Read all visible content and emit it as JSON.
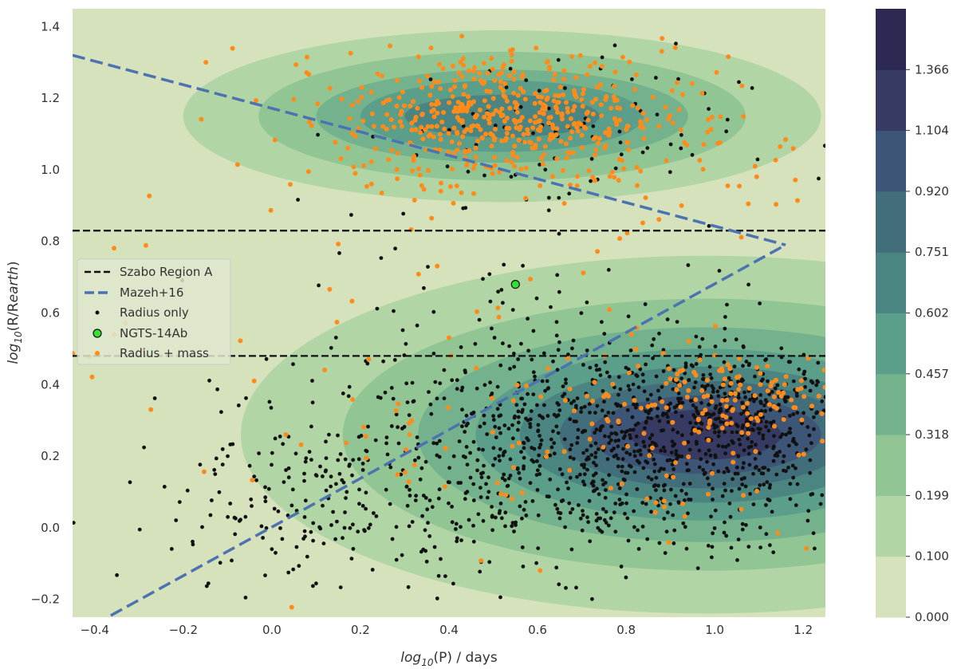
{
  "chart_data": {
    "type": "scatter",
    "title": "",
    "xlabel": {
      "pre": "log",
      "sub": "10",
      "post": "(P) / days"
    },
    "ylabel": {
      "pre": "log",
      "sub": "10",
      "mid": "(R/R",
      "sub2": "earth",
      "post": ")"
    },
    "xlim": [
      -0.45,
      1.25
    ],
    "ylim": [
      -0.25,
      1.45
    ],
    "xticks": [
      -0.4,
      -0.2,
      0.0,
      0.2,
      0.4,
      0.6,
      0.8,
      1.0,
      1.2
    ],
    "yticks": [
      -0.2,
      0.0,
      0.2,
      0.4,
      0.6,
      0.8,
      1.0,
      1.2,
      1.4
    ],
    "xtick_labels": [
      "−0.4",
      "−0.2",
      "0.0",
      "0.2",
      "0.4",
      "0.6",
      "0.8",
      "1.0",
      "1.2"
    ],
    "ytick_labels": [
      "−0.2",
      "0.0",
      "0.2",
      "0.4",
      "0.6",
      "0.8",
      "1.0",
      "1.2",
      "1.4"
    ],
    "grid": false,
    "background_color": "#d5e2bc",
    "colorbar": {
      "levels": [
        0.0,
        0.1,
        0.199,
        0.318,
        0.457,
        0.602,
        0.751,
        0.92,
        1.104,
        1.366
      ],
      "labels": [
        "0.000",
        "0.100",
        "0.199",
        "0.318",
        "0.457",
        "0.602",
        "0.751",
        "0.920",
        "1.104",
        "1.366"
      ],
      "colors": [
        "#d5e2bc",
        "#b2d5a5",
        "#91c594",
        "#73b28d",
        "#5b9e89",
        "#4b8582",
        "#426e7c",
        "#3d5576",
        "#373b63",
        "#2c2a52"
      ]
    },
    "density_blobs": [
      {
        "name": "giant-planet-cluster",
        "cx": 0.52,
        "cy": 1.15,
        "rx": [
          0.72,
          0.55,
          0.42,
          0.32,
          0.22
        ],
        "ry": [
          0.24,
          0.18,
          0.13,
          0.1,
          0.06
        ],
        "levels": [
          1,
          2,
          3,
          4,
          5
        ]
      },
      {
        "name": "small-planet-cluster",
        "cx": 0.98,
        "cy": 0.26,
        "rx": [
          1.05,
          0.82,
          0.65,
          0.52,
          0.42,
          0.33,
          0.26,
          0.17
        ],
        "ry": [
          0.5,
          0.38,
          0.3,
          0.24,
          0.19,
          0.15,
          0.11,
          0.07
        ],
        "levels": [
          1,
          2,
          3,
          4,
          5,
          6,
          7,
          8
        ]
      }
    ],
    "hlines": [
      {
        "name": "szabo-region-a-upper",
        "y": 0.83,
        "color": "#111111",
        "dash": "dashed"
      },
      {
        "name": "szabo-region-a-lower",
        "y": 0.48,
        "color": "#111111",
        "dash": "dashed"
      }
    ],
    "mazeh_lines": [
      {
        "name": "mazeh-upper-boundary",
        "x": [
          -0.45,
          1.16
        ],
        "y": [
          1.32,
          0.79
        ]
      },
      {
        "name": "mazeh-lower-boundary",
        "x": [
          -0.4,
          1.16
        ],
        "y": [
          -0.27,
          0.79
        ]
      }
    ],
    "series": [
      {
        "name": "Radius only",
        "color": "#111111",
        "kind": "dots",
        "clusters": [
          {
            "cx": 0.78,
            "cy": 0.2,
            "sx": 0.3,
            "sy": 0.14,
            "n": 850
          },
          {
            "cx": 1.05,
            "cy": 0.33,
            "sx": 0.12,
            "sy": 0.08,
            "n": 260
          },
          {
            "cx": 0.15,
            "cy": 0.05,
            "sx": 0.25,
            "sy": 0.15,
            "n": 220
          },
          {
            "cx": 0.55,
            "cy": 0.5,
            "sx": 0.25,
            "sy": 0.15,
            "n": 120
          },
          {
            "cx": 0.62,
            "cy": 1.1,
            "sx": 0.22,
            "sy": 0.12,
            "n": 90
          }
        ]
      },
      {
        "name": "Radius + mass",
        "color": "#ff8c1a",
        "kind": "dots",
        "clusters": [
          {
            "cx": 0.52,
            "cy": 1.15,
            "sx": 0.18,
            "sy": 0.09,
            "n": 420
          },
          {
            "cx": 0.7,
            "cy": 1.1,
            "sx": 0.35,
            "sy": 0.13,
            "n": 150
          },
          {
            "cx": 1.02,
            "cy": 0.36,
            "sx": 0.13,
            "sy": 0.07,
            "n": 120
          },
          {
            "cx": 0.7,
            "cy": 0.25,
            "sx": 0.28,
            "sy": 0.16,
            "n": 80
          },
          {
            "cx": 0.25,
            "cy": 0.45,
            "sx": 0.4,
            "sy": 0.3,
            "n": 60
          }
        ]
      }
    ],
    "highlight": {
      "name": "NGTS-14Ab",
      "x": 0.55,
      "y": 0.68,
      "color": "#33e033"
    },
    "legend": {
      "position": "center-left",
      "entries": [
        {
          "label": "Szabo Region A",
          "style": "black-dash"
        },
        {
          "label": "Mazeh+16",
          "style": "blue-dash"
        },
        {
          "label": "Radius only",
          "style": "black-dot"
        },
        {
          "label": "NGTS-14Ab",
          "style": "green-dot"
        },
        {
          "label": "Radius + mass",
          "style": "orange-dot"
        }
      ]
    },
    "line_colors": {
      "mazeh": "#4c72b0",
      "szabo": "#111111"
    }
  }
}
